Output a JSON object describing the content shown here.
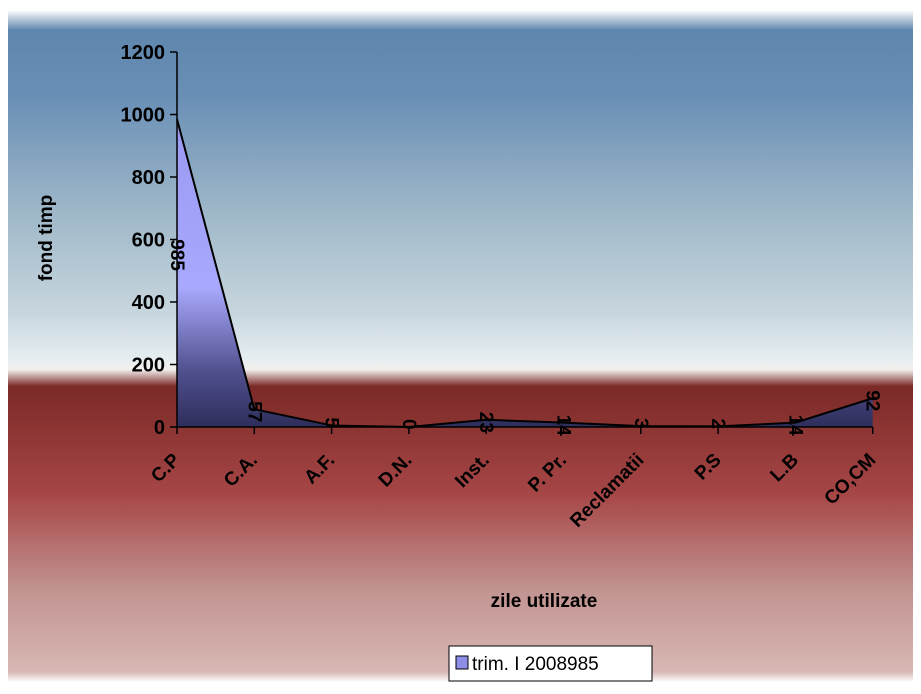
{
  "chart_data": {
    "type": "area",
    "title": "",
    "xlabel": "zile utilizate",
    "ylabel": "fond timp",
    "ylim": [
      0,
      1200
    ],
    "yticks": [
      0,
      200,
      400,
      600,
      800,
      1000,
      1200
    ],
    "yticks_labels": [
      "0",
      "200",
      "400",
      "600",
      "800",
      "1000",
      "1200"
    ],
    "categories": [
      "C.P",
      "C.A.",
      "A.F.",
      "D.N.",
      "Inst.",
      "P. Pr.",
      "Reclamatii",
      "P.S",
      "L.B",
      "CO,CM"
    ],
    "series": [
      {
        "name": "trim. I 2008985",
        "values": [
          985,
          57,
          5,
          0,
          23,
          14,
          3,
          2,
          14,
          92
        ],
        "value_labels": [
          "985",
          "57",
          "5",
          "0",
          "23",
          "14",
          "3",
          "2",
          "14",
          "92"
        ],
        "fill_color": "#8E8EE8",
        "line_color": "#000000"
      }
    ],
    "legend": {
      "position": "bottom",
      "label": "trim. I 2008985"
    },
    "grid": false,
    "colors": {
      "background_top": "#5B7FA8",
      "background_band": "#7A2A28",
      "background_bottom": "#C79C98",
      "area_light": "#A4A4FA",
      "area_dark": "#303060"
    }
  }
}
